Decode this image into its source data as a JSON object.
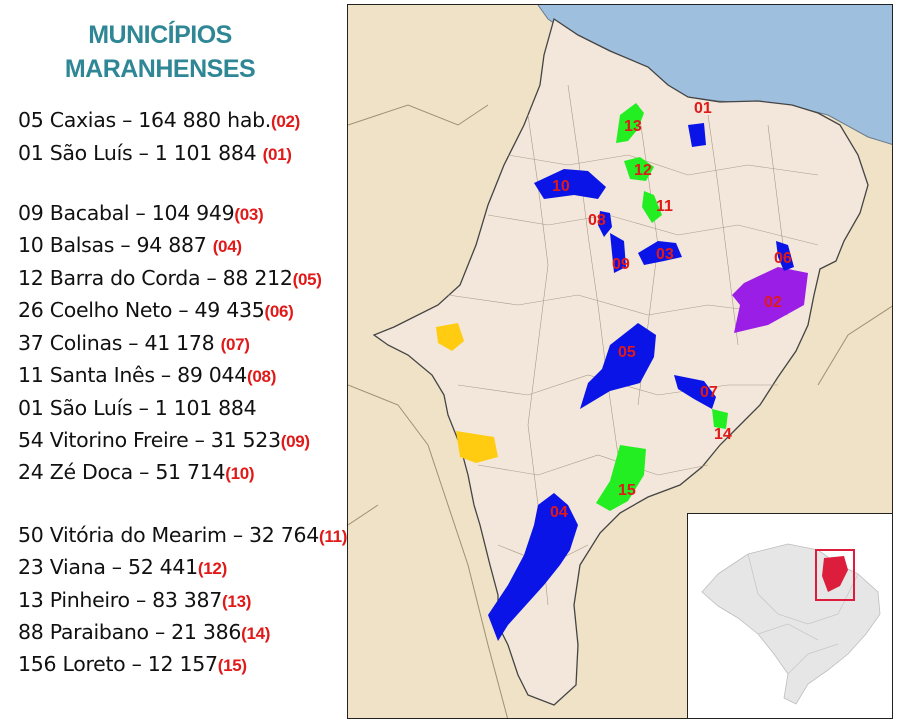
{
  "title": [
    "MUNICÍPIOS",
    "MARANHENSES"
  ],
  "entries": [
    {
      "text": "05 Caxias – 164 880 hab.",
      "code": "(02)"
    },
    {
      "text": "01 São Luís – 1 101 884 ",
      "code": "(01)"
    },
    {
      "text": "09 Bacabal – 104 949",
      "code": "(03)"
    },
    {
      "text": "10 Balsas – 94 887 ",
      "code": "(04)"
    },
    {
      "text": "12 Barra do Corda – 88 212",
      "code": "(05)"
    },
    {
      "text": "26 Coelho Neto – 49 435",
      "code": "(06)"
    },
    {
      "text": "37 Colinas – 41 178 ",
      "code": "(07)"
    },
    {
      "text": "11 Santa Inês – 89 044",
      "code": "(08)"
    },
    {
      "text": "01 São Luís – 1 101 884",
      "code": ""
    },
    {
      "text": "54 Vitorino Freire – 31 523",
      "code": "(09)"
    },
    {
      "text": "24 Zé Doca – 51 714",
      "code": "(10)"
    },
    {
      "text": "50 Vitória do Mearim – 32 764",
      "code": "(11)"
    },
    {
      "text": "23 Viana – 52 441",
      "code": "(12)"
    },
    {
      "text": "13 Pinheiro – 83 387",
      "code": "(13)"
    },
    {
      "text": "88 Paraibano – 21 386",
      "code": "(14)"
    },
    {
      "text": "156 Loreto – 12 157",
      "code": "(15)"
    }
  ],
  "map_labels": [
    "01",
    "02",
    "03",
    "04",
    "05",
    "06",
    "07",
    "08",
    "09",
    "10",
    "11",
    "12",
    "13",
    "14",
    "15"
  ],
  "colors": {
    "title": "#2f8796",
    "code": "#e01919",
    "ocean": "#9ebfde",
    "state": "#f2e7da",
    "neighbor": "#efe2c6",
    "blue": "#0a14e6",
    "green": "#22ee22",
    "purple": "#9b1ee6",
    "orange": "#ffcc11",
    "inset_highlight": "#dc1e3c"
  }
}
